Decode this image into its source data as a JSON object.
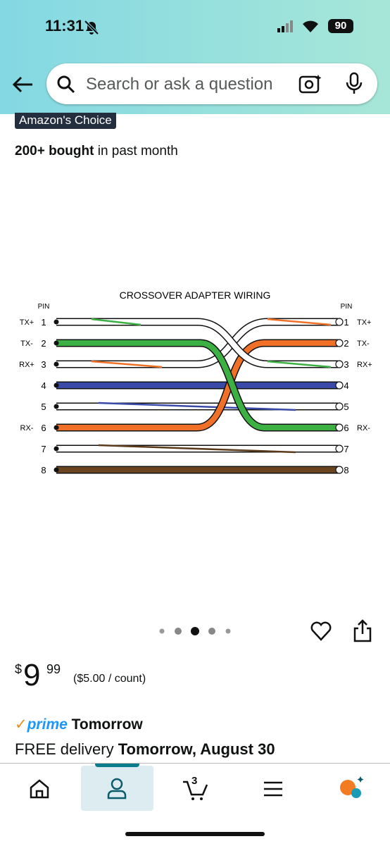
{
  "status": {
    "time": "11:31",
    "battery": "90"
  },
  "search": {
    "placeholder": "Search or ask a question"
  },
  "product": {
    "badge": "Amazon's Choice",
    "bought_bold": "200+ bought",
    "bought_rest": "in past month"
  },
  "diagram": {
    "title": "CROSSOVER ADAPTER WIRING",
    "left_header": "PIN",
    "right_header": "PIN",
    "left": [
      {
        "pin": "1",
        "signal": "TX+"
      },
      {
        "pin": "2",
        "signal": "TX-"
      },
      {
        "pin": "3",
        "signal": "RX+"
      },
      {
        "pin": "4"
      },
      {
        "pin": "5"
      },
      {
        "pin": "6",
        "signal": "RX-"
      },
      {
        "pin": "7"
      },
      {
        "pin": "8"
      }
    ],
    "right": [
      {
        "pin": "1",
        "signal": "TX+"
      },
      {
        "pin": "2",
        "signal": "TX-"
      },
      {
        "pin": "3",
        "signal": "RX+"
      },
      {
        "pin": "4"
      },
      {
        "pin": "5"
      },
      {
        "pin": "6",
        "signal": "RX-"
      },
      {
        "pin": "7"
      },
      {
        "pin": "8"
      }
    ]
  },
  "price": {
    "currency": "$",
    "whole": "9",
    "fraction": "99",
    "unit": "($5.00 / count)"
  },
  "delivery": {
    "prime": "prime",
    "prime_day": "Tomorrow",
    "free": "FREE delivery",
    "date": "Tomorrow, August 30"
  },
  "nav": {
    "cart_count": "3"
  }
}
